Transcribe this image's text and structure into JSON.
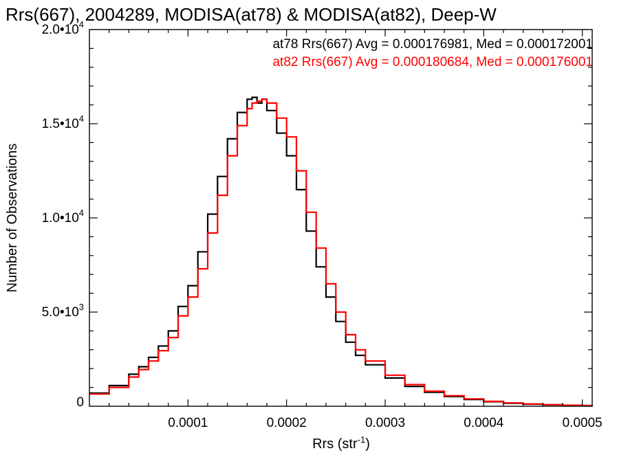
{
  "chart_data": {
    "type": "line",
    "title": "Rrs(667), 2004289, MODISA(at78) & MODISA(at82), Deep-W",
    "xlabel": "Rrs (str",
    "xlabel_sup": "-1",
    "xlabel_end": ")",
    "ylabel": "Number of Observations",
    "xlim": [
      0.0,
      0.00051
    ],
    "ylim": [
      0,
      20000
    ],
    "x_ticks": [
      {
        "value": 0.0001,
        "label": "0.0001"
      },
      {
        "value": 0.0002,
        "label": "0.0002"
      },
      {
        "value": 0.0003,
        "label": "0.0003"
      },
      {
        "value": 0.0004,
        "label": "0.0004"
      },
      {
        "value": 0.0005,
        "label": "0.0005"
      }
    ],
    "y_ticks": [
      {
        "value": 0,
        "mant": "0",
        "exp": ""
      },
      {
        "value": 5000,
        "mant": "5.0•10",
        "exp": "3"
      },
      {
        "value": 10000,
        "mant": "1.0•10",
        "exp": "4"
      },
      {
        "value": 15000,
        "mant": "1.5•10",
        "exp": "4"
      },
      {
        "value": 20000,
        "mant": "2.0•10",
        "exp": "4"
      }
    ],
    "grid": false,
    "legend_position": "top-right",
    "series": [
      {
        "name": "at78",
        "annotation": "at78 Rrs(667) Avg = 0.000176981, Med = 0.000172001",
        "color": "#000000",
        "x": [
          0.0,
          2e-05,
          4e-05,
          5e-05,
          6e-05,
          7e-05,
          8e-05,
          9e-05,
          0.0001,
          0.00011,
          0.00012,
          0.00013,
          0.00014,
          0.00015,
          0.00016,
          0.000165,
          0.00017,
          0.000175,
          0.00018,
          0.00019,
          0.0002,
          0.00021,
          0.00022,
          0.00023,
          0.00024,
          0.00025,
          0.00026,
          0.00027,
          0.00028,
          0.0003,
          0.00032,
          0.00034,
          0.00036,
          0.00038,
          0.0004,
          0.00042,
          0.00044,
          0.00046,
          0.00048,
          0.0005,
          0.00051
        ],
        "y": [
          700,
          1100,
          1700,
          2100,
          2600,
          3200,
          4000,
          5300,
          6400,
          8200,
          10200,
          12200,
          14200,
          15600,
          16300,
          16400,
          16100,
          16300,
          15700,
          14500,
          13300,
          11500,
          9300,
          7400,
          5800,
          4500,
          3400,
          2700,
          2200,
          1500,
          1050,
          740,
          520,
          360,
          240,
          160,
          110,
          75,
          50,
          30,
          20
        ]
      },
      {
        "name": "at82",
        "annotation": "at82 Rrs(667) Avg = 0.000180684, Med = 0.000176001",
        "color": "#ff0000",
        "x": [
          0.0,
          2e-05,
          4e-05,
          5e-05,
          6e-05,
          7e-05,
          8e-05,
          9e-05,
          0.0001,
          0.00011,
          0.00012,
          0.00013,
          0.00014,
          0.00015,
          0.00016,
          0.000165,
          0.00017,
          0.000175,
          0.00018,
          0.00019,
          0.0002,
          0.00021,
          0.00022,
          0.00023,
          0.00024,
          0.00025,
          0.00026,
          0.00027,
          0.00028,
          0.0003,
          0.00032,
          0.00034,
          0.00036,
          0.00038,
          0.0004,
          0.00042,
          0.00044,
          0.00046,
          0.00048,
          0.0005,
          0.00051
        ],
        "y": [
          650,
          1000,
          1550,
          1950,
          2400,
          2950,
          3650,
          4800,
          5800,
          7300,
          9200,
          11200,
          13300,
          14900,
          15800,
          16100,
          16200,
          16300,
          16100,
          15300,
          14300,
          12500,
          10300,
          8400,
          6500,
          5000,
          3800,
          3000,
          2400,
          1650,
          1150,
          800,
          560,
          390,
          260,
          175,
          120,
          80,
          55,
          35,
          20
        ]
      }
    ]
  }
}
